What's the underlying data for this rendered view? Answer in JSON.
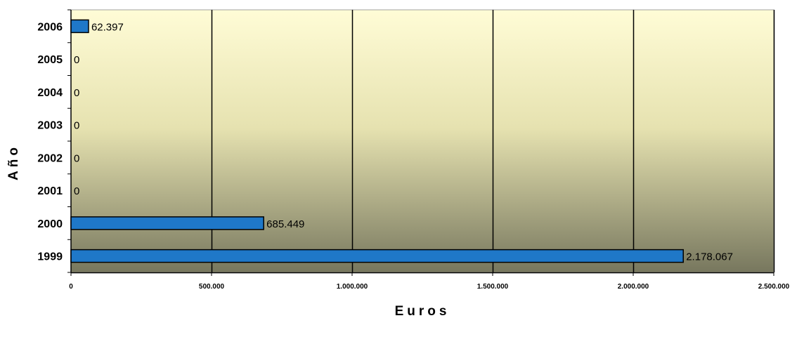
{
  "chart_data": {
    "type": "bar",
    "orientation": "horizontal",
    "categories": [
      "2006",
      "2005",
      "2004",
      "2003",
      "2002",
      "2001",
      "2000",
      "1999"
    ],
    "values": [
      62397,
      0,
      0,
      0,
      0,
      0,
      685449,
      2178067
    ],
    "data_labels": [
      "62.397",
      "0",
      "0",
      "0",
      "0",
      "0",
      "685.449",
      "2.178.067"
    ],
    "xlabel": "Euros",
    "ylabel": "Año",
    "xlim": [
      0,
      2500000
    ],
    "x_ticks": [
      0,
      500000,
      1000000,
      1500000,
      2000000,
      2500000
    ],
    "x_tick_labels": [
      "0",
      "500.000",
      "1.000.000",
      "1.500.000",
      "2.000.000",
      "2.500.000"
    ],
    "grid": "vertical",
    "legend": "none",
    "colors": {
      "bar": "#1f78c8",
      "bar_stroke": "#000000",
      "plot_top": "#fffcd6",
      "plot_mid": "#e6e2b0",
      "plot_bottom": "#77775e",
      "gridline": "#000000"
    }
  }
}
